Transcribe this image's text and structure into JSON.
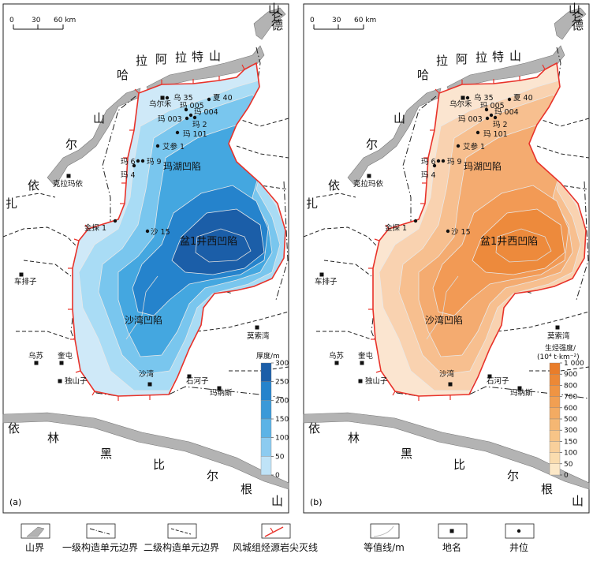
{
  "scale_bar": {
    "ticks": [
      "0",
      "30",
      "60 km"
    ]
  },
  "panels": [
    {
      "id": "a",
      "panel_label": "(a)",
      "fill_colors": [
        "#cfe9f8",
        "#a9dcf5",
        "#79c6ee",
        "#44a7e0",
        "#2583cc",
        "#1b5ea8"
      ],
      "colorbar": {
        "title": "厚度/m",
        "ticks": [
          "300",
          "250",
          "200",
          "150",
          "100",
          "50",
          "0"
        ],
        "colors": [
          "#1b5ea8",
          "#2583cc",
          "#3b99d8",
          "#5cb3e6",
          "#8ccbf0",
          "#bfe3f7"
        ]
      },
      "highlight_label": "盆1井西凹陷"
    },
    {
      "id": "b",
      "panel_label": "(b)",
      "fill_colors": [
        "#fbe5d0",
        "#f9d2b0",
        "#f7bf8f",
        "#f4ab70",
        "#f29a55",
        "#ed8a3c"
      ],
      "colorbar": {
        "title": "生烃强度/",
        "title2": "(10⁴ t·km⁻²)",
        "ticks": [
          "1 000",
          "900",
          "800",
          "700",
          "600",
          "500",
          "300",
          "150",
          "100",
          "50",
          "0"
        ],
        "colors": [
          "#e97d2a",
          "#ec8836",
          "#ef9443",
          "#f19f52",
          "#f3ab62",
          "#f5b773",
          "#f7c487",
          "#f9d09b",
          "#fadcae",
          "#fce8c7"
        ]
      },
      "highlight_label": "盆1井西凹陷"
    }
  ],
  "mountains": {
    "north": [
      "哈",
      "拉",
      "阿",
      "拉",
      "特",
      "山"
    ],
    "northwest": [
      "山",
      "尔",
      "依",
      "扎"
    ],
    "south": [
      "依",
      "林",
      "黑",
      "比",
      "尔",
      "根",
      "山"
    ],
    "corner": [
      "山",
      "仑",
      "德"
    ]
  },
  "basins": {
    "mahu": "玛湖凹陷",
    "shawan": "沙湾凹陷"
  },
  "places": {
    "kelamayi": "克拉玛依",
    "chepaizi": "车排子",
    "wusu": "乌苏",
    "kuitun": "奎屯",
    "dushanzi": "独山子",
    "shawan": "沙湾",
    "shihezi": "石河子",
    "manasi": "玛纳斯",
    "mosuowan": "莫索湾",
    "wuerhe": "乌尔禾"
  },
  "wells": {
    "wu35": "乌 35",
    "xia40": "夏 40",
    "ma005": "玛 005",
    "ma004": "玛 004",
    "ma003": "玛 003",
    "ma2": "玛 2",
    "ma101": "玛 101",
    "aican1": "艾参 1",
    "ma6": "玛 6",
    "ma9": "玛 9",
    "ma4": "玛 4",
    "jintan1": "金探 1",
    "sha15": "沙 15"
  },
  "legend": [
    {
      "icon": "mountain-range",
      "label": "山界"
    },
    {
      "icon": "primary-boundary",
      "label": "一级构造单元边界"
    },
    {
      "icon": "secondary-boundary",
      "label": "二级构造单元边界"
    },
    {
      "icon": "pinchout-line",
      "label": "风城组烃源岩尖灭线"
    },
    {
      "icon": "isoline",
      "label": "等值线/m"
    },
    {
      "icon": "place-name",
      "label": "地名"
    },
    {
      "icon": "well-location",
      "label": "井位"
    }
  ]
}
